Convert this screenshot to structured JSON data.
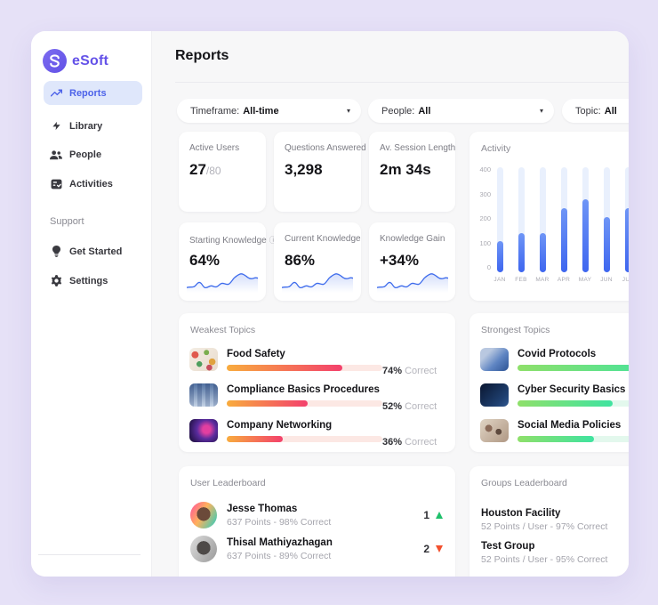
{
  "app": {
    "brand": "eSoft"
  },
  "colors": {
    "page_bg": "#E6E1F7",
    "panel_bg": "#F7F7F8",
    "brand_purple": "#6452E8",
    "active_nav_bg": "#DFE7FB",
    "active_nav_text": "#4C62E9",
    "bar_blue": "#3E66EF",
    "weak_gradient": [
      "#F8AC3E",
      "#F3406C"
    ],
    "strong_gradient": [
      "#8FE06A",
      "#3FE3A0"
    ],
    "rank_up": "#1FC06B",
    "rank_down": "#F3502E"
  },
  "sidebar": {
    "items": [
      {
        "label": "Reports",
        "icon": "trending-up-icon",
        "active": true
      },
      {
        "label": "Library",
        "icon": "lightning-icon",
        "active": false
      },
      {
        "label": "People",
        "icon": "people-icon",
        "active": false
      },
      {
        "label": "Activities",
        "icon": "activities-checklist-icon",
        "active": false
      }
    ],
    "support_label": "Support",
    "support_items": [
      {
        "label": "Get Started",
        "icon": "lightbulb-icon"
      },
      {
        "label": "Settings",
        "icon": "gear-icon"
      }
    ]
  },
  "header": {
    "title": "Reports"
  },
  "filters": [
    {
      "label": "Timeframe:",
      "value": "All-time"
    },
    {
      "label": "People:",
      "value": "All"
    },
    {
      "label": "Topic:",
      "value": "All"
    }
  ],
  "stats": [
    {
      "label": "Active Users",
      "value": "27",
      "suffix": "/80"
    },
    {
      "label": "Questions Answered",
      "value": "3,298",
      "suffix": ""
    },
    {
      "label": "Av. Session Length",
      "value": "2m 34s",
      "suffix": ""
    }
  ],
  "knowledge": [
    {
      "label": "Starting Knowledge",
      "value": "64%",
      "has_info_icon": true
    },
    {
      "label": "Current Knowledge",
      "value": "86%",
      "has_info_icon": false
    },
    {
      "label": "Knowledge Gain",
      "value": "+34%",
      "has_info_icon": false
    }
  ],
  "chart_data": {
    "type": "bar",
    "title": "Activity",
    "categories": [
      "JAN",
      "FEB",
      "MAR",
      "APR",
      "MAY",
      "JUN",
      "JUL"
    ],
    "values": [
      105,
      140,
      140,
      240,
      275,
      205,
      240
    ],
    "yticks": [
      0,
      100,
      200,
      300,
      400
    ],
    "ylim": [
      0,
      400
    ],
    "xlabel": "",
    "ylabel": "",
    "grid": false,
    "legend": "none"
  },
  "weakest": {
    "title": "Weakest Topics",
    "items": [
      {
        "name": "Food Safety",
        "pct": 74,
        "pct_label": "74%",
        "correct_label": "Correct",
        "thumb": "food-safety-photo"
      },
      {
        "name": "Compliance Basics Procedures",
        "pct": 52,
        "pct_label": "52%",
        "correct_label": "Correct",
        "thumb": "compliance-photo"
      },
      {
        "name": "Company Networking",
        "pct": 36,
        "pct_label": "36%",
        "correct_label": "Correct",
        "thumb": "networking-photo"
      }
    ]
  },
  "strongest": {
    "title": "Strongest Topics",
    "items": [
      {
        "name": "Covid Protocols",
        "fill_ratio": 0.95,
        "thumb": "covid-photo"
      },
      {
        "name": "Cyber Security Basics",
        "fill_ratio": 0.61,
        "thumb": "cyber-photo"
      },
      {
        "name": "Social Media Policies",
        "fill_ratio": 0.49,
        "thumb": "social-photo"
      }
    ]
  },
  "user_leaderboard": {
    "title": "User Leaderboard",
    "rows": [
      {
        "name": "Jesse Thomas",
        "sub": "637 Points - 98% Correct",
        "rank": "1",
        "direction": "up"
      },
      {
        "name": "Thisal Mathiyazhagan",
        "sub": "637 Points - 89% Correct",
        "rank": "2",
        "direction": "down"
      }
    ]
  },
  "groups_leaderboard": {
    "title": "Groups Leaderboard",
    "rows": [
      {
        "name": "Houston Facility",
        "sub": "52 Points / User - 97% Correct"
      },
      {
        "name": "Test Group",
        "sub": "52 Points / User - 95% Correct"
      }
    ]
  }
}
